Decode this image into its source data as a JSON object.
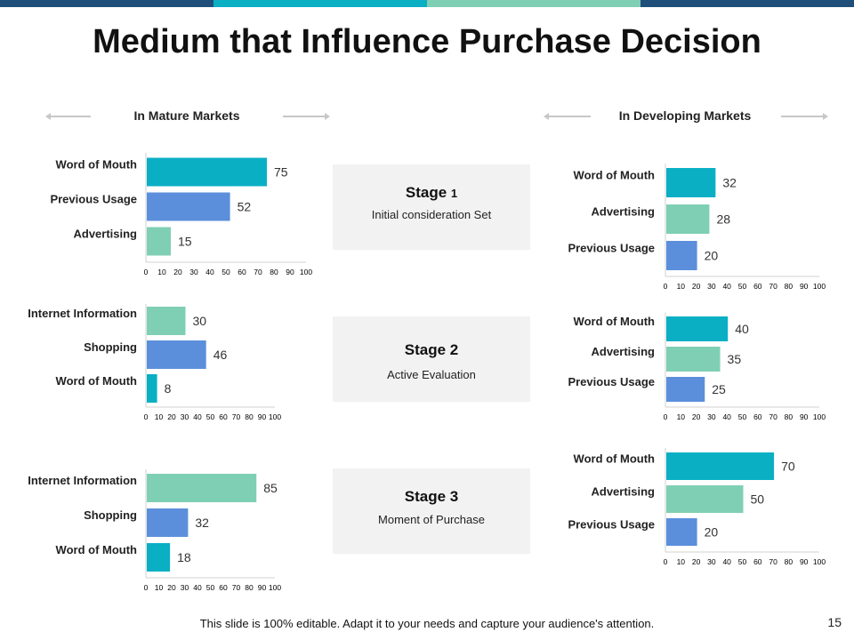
{
  "title": "Medium that Influence Purchase Decision",
  "colors": {
    "teal": "#0aafc4",
    "blue": "#5b8fdb",
    "mint": "#7fcfb4",
    "navy": "#1f4e79",
    "topbar": [
      "#1f4e79",
      "#0aafc4",
      "#7fcfb4",
      "#1f4e79"
    ]
  },
  "sections": {
    "mature": "In Mature Markets",
    "developing": "In Developing Markets"
  },
  "stages": [
    {
      "label": "Stage ",
      "num": "1",
      "subtitle": "Initial consideration Set"
    },
    {
      "label": "Stage ",
      "num": "2",
      "subtitle": "Active Evaluation"
    },
    {
      "label": "Stage ",
      "num": "3",
      "subtitle": "Moment of Purchase"
    }
  ],
  "chart_data": [
    {
      "id": "mature-stage-1",
      "type": "bar",
      "orientation": "horizontal",
      "categories": [
        "Word of Mouth",
        "Previous Usage",
        "Advertising"
      ],
      "values": [
        75,
        52,
        15
      ],
      "colors": [
        "teal",
        "blue",
        "mint"
      ],
      "xlim": [
        0,
        100
      ],
      "ticks": [
        "0",
        "10",
        "20",
        "30",
        "40",
        "50",
        "60",
        "70",
        "80",
        "90",
        "100"
      ]
    },
    {
      "id": "mature-stage-2",
      "type": "bar",
      "orientation": "horizontal",
      "categories": [
        "Internet Information",
        "Shopping",
        "Word of Mouth"
      ],
      "values": [
        30,
        46,
        8
      ],
      "colors": [
        "mint",
        "blue",
        "teal"
      ],
      "xlim": [
        0,
        100
      ],
      "ticks": [
        "0",
        "10",
        "20",
        "30",
        "40",
        "50",
        "60",
        "70",
        "80",
        "90",
        "100"
      ]
    },
    {
      "id": "mature-stage-3",
      "type": "bar",
      "orientation": "horizontal",
      "categories": [
        "Internet Information",
        "Shopping",
        "Word of Mouth"
      ],
      "values": [
        85,
        32,
        18
      ],
      "colors": [
        "mint",
        "blue",
        "teal"
      ],
      "xlim": [
        0,
        100
      ],
      "ticks": [
        "0",
        "10",
        "20",
        "30",
        "40",
        "50",
        "60",
        "70",
        "80",
        "90",
        "100"
      ]
    },
    {
      "id": "developing-stage-1",
      "type": "bar",
      "orientation": "horizontal",
      "categories": [
        "Word of Mouth",
        "Advertising",
        "Previous Usage"
      ],
      "values": [
        32,
        28,
        20
      ],
      "colors": [
        "teal",
        "mint",
        "blue"
      ],
      "xlim": [
        0,
        100
      ],
      "ticks": [
        "0",
        "10",
        "20",
        "30",
        "40",
        "50",
        "60",
        "70",
        "80",
        "90",
        "100"
      ]
    },
    {
      "id": "developing-stage-2",
      "type": "bar",
      "orientation": "horizontal",
      "categories": [
        "Word of Mouth",
        "Advertising",
        "Previous Usage"
      ],
      "values": [
        40,
        35,
        25
      ],
      "colors": [
        "teal",
        "mint",
        "blue"
      ],
      "xlim": [
        0,
        100
      ],
      "ticks": [
        "0",
        "10",
        "20",
        "30",
        "40",
        "50",
        "60",
        "70",
        "80",
        "90",
        "100"
      ]
    },
    {
      "id": "developing-stage-3",
      "type": "bar",
      "orientation": "horizontal",
      "categories": [
        "Word of Mouth",
        "Advertising",
        "Previous Usage"
      ],
      "values": [
        70,
        50,
        20
      ],
      "colors": [
        "teal",
        "mint",
        "blue"
      ],
      "xlim": [
        0,
        100
      ],
      "ticks": [
        "0",
        "10",
        "20",
        "30",
        "40",
        "50",
        "60",
        "70",
        "80",
        "90",
        "100"
      ]
    }
  ],
  "footer": "This slide is 100% editable. Adapt it to your needs and capture your audience's attention.",
  "page_number": "15"
}
